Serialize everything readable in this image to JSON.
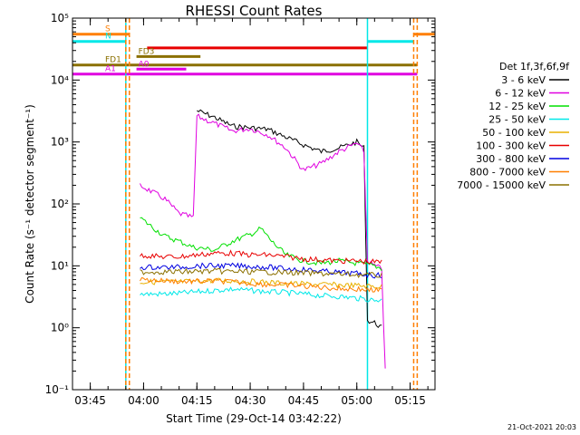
{
  "chart_data": {
    "type": "line",
    "title": "RHESSI Count Rates",
    "xlabel": "Start Time (29-Oct-14 03:42:22)",
    "ylabel": "Count Rate (s⁻¹ detector segment⁻¹)",
    "yscale": "log",
    "ylim": [
      0.1,
      100000
    ],
    "xlim": [
      "03:40",
      "05:22"
    ],
    "x_ticks": [
      "03:45",
      "04:00",
      "04:15",
      "04:30",
      "04:45",
      "05:00",
      "05:15"
    ],
    "y_ticks": [
      "10⁻¹",
      "10⁰",
      "10¹",
      "10²",
      "10³",
      "10⁴",
      "10⁵"
    ],
    "grid": false,
    "legend": {
      "position": "right",
      "title": "Det 1f,3f,6f,9f",
      "entries": [
        {
          "label": "3 - 6 keV",
          "color": "#000000"
        },
        {
          "label": "6 - 12 keV",
          "color": "#e000e0"
        },
        {
          "label": "12 - 25 keV",
          "color": "#00e000"
        },
        {
          "label": "25 - 50 keV",
          "color": "#00e8e8"
        },
        {
          "label": "50 - 100 keV",
          "color": "#e8b000"
        },
        {
          "label": "100 - 300 keV",
          "color": "#e80000"
        },
        {
          "label": "300 - 800 keV",
          "color": "#0000e0"
        },
        {
          "label": "800 - 7000 keV",
          "color": "#ff7f00"
        },
        {
          "label": "7000 - 15000 keV",
          "color": "#8b7000"
        }
      ]
    },
    "series": [
      {
        "name": "3 - 6 keV",
        "color": "#000000",
        "points": [
          [
            "04:15",
            3200
          ],
          [
            "04:20",
            2500
          ],
          [
            "04:25",
            1800
          ],
          [
            "04:30",
            1700
          ],
          [
            "04:35",
            1600
          ],
          [
            "04:40",
            1200
          ],
          [
            "04:45",
            900
          ],
          [
            "04:50",
            700
          ],
          [
            "04:55",
            800
          ],
          [
            "05:00",
            1000
          ],
          [
            "05:02",
            800
          ],
          [
            "05:03",
            1.3
          ],
          [
            "05:05",
            1.2
          ],
          [
            "05:07",
            1.0
          ]
        ]
      },
      {
        "name": "6 - 12 keV",
        "color": "#e000e0",
        "points": [
          [
            "03:59",
            200
          ],
          [
            "04:03",
            150
          ],
          [
            "04:06",
            120
          ],
          [
            "04:10",
            70
          ],
          [
            "04:14",
            60
          ],
          [
            "04:15",
            2600
          ],
          [
            "04:20",
            2000
          ],
          [
            "04:25",
            1500
          ],
          [
            "04:30",
            1650
          ],
          [
            "04:35",
            1300
          ],
          [
            "04:40",
            800
          ],
          [
            "04:45",
            350
          ],
          [
            "04:50",
            450
          ],
          [
            "04:55",
            700
          ],
          [
            "05:00",
            950
          ],
          [
            "05:02",
            700
          ],
          [
            "05:03",
            12
          ],
          [
            "05:05",
            10
          ],
          [
            "05:07",
            9
          ],
          [
            "05:08",
            0.2
          ]
        ]
      },
      {
        "name": "12 - 25 keV",
        "color": "#00e000",
        "points": [
          [
            "03:59",
            60
          ],
          [
            "04:03",
            40
          ],
          [
            "04:06",
            30
          ],
          [
            "04:10",
            25
          ],
          [
            "04:14",
            20
          ],
          [
            "04:20",
            18
          ],
          [
            "04:25",
            25
          ],
          [
            "04:30",
            32
          ],
          [
            "04:33",
            40
          ],
          [
            "04:36",
            25
          ],
          [
            "04:40",
            15
          ],
          [
            "04:45",
            12
          ],
          [
            "04:50",
            11
          ],
          [
            "04:55",
            12
          ],
          [
            "05:00",
            11
          ],
          [
            "05:05",
            10
          ],
          [
            "05:07",
            9
          ]
        ]
      },
      {
        "name": "25 - 50 keV",
        "color": "#00e8e8",
        "points": [
          [
            "03:59",
            3.5
          ],
          [
            "04:05",
            3.5
          ],
          [
            "04:10",
            3.6
          ],
          [
            "04:15",
            3.8
          ],
          [
            "04:20",
            4.0
          ],
          [
            "04:25",
            4.2
          ],
          [
            "04:30",
            4.0
          ],
          [
            "04:35",
            3.8
          ],
          [
            "04:40",
            3.7
          ],
          [
            "04:45",
            3.5
          ],
          [
            "04:50",
            3.3
          ],
          [
            "04:55",
            3.2
          ],
          [
            "05:00",
            3.0
          ],
          [
            "05:05",
            2.8
          ],
          [
            "05:07",
            2.8
          ]
        ]
      },
      {
        "name": "50 - 100 keV",
        "color": "#e8b000",
        "points": [
          [
            "03:59",
            5.5
          ],
          [
            "04:10",
            5.5
          ],
          [
            "04:20",
            5.8
          ],
          [
            "04:30",
            5.6
          ],
          [
            "04:40",
            5.2
          ],
          [
            "04:50",
            5.0
          ],
          [
            "05:00",
            4.8
          ],
          [
            "05:07",
            4.6
          ]
        ]
      },
      {
        "name": "100 - 300 keV",
        "color": "#e80000",
        "points": [
          [
            "03:59",
            15
          ],
          [
            "04:05",
            14
          ],
          [
            "04:10",
            14
          ],
          [
            "04:15",
            15
          ],
          [
            "04:20",
            16
          ],
          [
            "04:25",
            16
          ],
          [
            "04:30",
            15
          ],
          [
            "04:35",
            15
          ],
          [
            "04:40",
            14
          ],
          [
            "04:45",
            13
          ],
          [
            "04:50",
            12.5
          ],
          [
            "04:55",
            12
          ],
          [
            "05:00",
            12
          ],
          [
            "05:05",
            11.5
          ],
          [
            "05:07",
            11.5
          ]
        ]
      },
      {
        "name": "300 - 800 keV",
        "color": "#0000e0",
        "points": [
          [
            "03:59",
            9.5
          ],
          [
            "04:05",
            9.5
          ],
          [
            "04:10",
            9.5
          ],
          [
            "04:15",
            10
          ],
          [
            "04:20",
            10
          ],
          [
            "04:25",
            10
          ],
          [
            "04:30",
            9.8
          ],
          [
            "04:35",
            9.5
          ],
          [
            "04:40",
            9
          ],
          [
            "04:45",
            8.7
          ],
          [
            "04:50",
            8.2
          ],
          [
            "04:55",
            7.8
          ],
          [
            "05:00",
            7.5
          ],
          [
            "05:05",
            7
          ],
          [
            "05:07",
            7
          ]
        ]
      },
      {
        "name": "800 - 7000 keV",
        "color": "#ff7f00",
        "points": [
          [
            "03:59",
            6
          ],
          [
            "04:05",
            5.8
          ],
          [
            "04:10",
            5.6
          ],
          [
            "04:15",
            5.6
          ],
          [
            "04:20",
            5.7
          ],
          [
            "04:25",
            5.5
          ],
          [
            "04:30",
            5.2
          ],
          [
            "04:35",
            5.0
          ],
          [
            "04:40",
            4.9
          ],
          [
            "04:45",
            4.7
          ],
          [
            "04:50",
            4.5
          ],
          [
            "04:55",
            4.3
          ],
          [
            "05:00",
            4.2
          ],
          [
            "05:05",
            4.0
          ],
          [
            "05:07",
            4.0
          ]
        ]
      },
      {
        "name": "7000 - 15000 keV",
        "color": "#8b7000",
        "points": [
          [
            "03:59",
            8
          ],
          [
            "04:10",
            8
          ],
          [
            "04:20",
            8.2
          ],
          [
            "04:30",
            8
          ],
          [
            "04:40",
            7.8
          ],
          [
            "04:50",
            7.5
          ],
          [
            "05:00",
            7.2
          ],
          [
            "05:07",
            7
          ]
        ]
      }
    ],
    "flags": [
      {
        "label": "S",
        "color": "#ff7f00",
        "level": 55000,
        "segments": [
          [
            "03:40",
            "03:56"
          ],
          [
            "05:16",
            "05:22"
          ]
        ]
      },
      {
        "label": "N",
        "color": "#00e8e8",
        "level": 42000,
        "segments": [
          [
            "03:40",
            "03:55"
          ],
          [
            "05:03",
            "05:16"
          ]
        ]
      },
      {
        "label": "",
        "color": "#e80000",
        "level": 33000,
        "segments": [
          [
            "04:01",
            "05:03"
          ]
        ]
      },
      {
        "label": "FD1",
        "color": "#8b7000",
        "level": 17500,
        "segments": [
          [
            "03:40",
            "05:17"
          ]
        ]
      },
      {
        "label": "FD3",
        "color": "#8b7000",
        "level": 24000,
        "segments": [
          [
            "03:58",
            "04:16"
          ]
        ]
      },
      {
        "label": "A0",
        "color": "#e000e0",
        "level": 15000,
        "segments": [
          [
            "03:58",
            "04:12"
          ]
        ]
      },
      {
        "label": "A1",
        "color": "#e000e0",
        "level": 12500,
        "segments": [
          [
            "03:40",
            "05:17"
          ]
        ]
      }
    ],
    "vlines": [
      {
        "time": "03:55",
        "color": "#00e8e8"
      },
      {
        "time": "03:55",
        "color": "#ff7f00",
        "dashed": true
      },
      {
        "time": "03:56",
        "color": "#ff7f00",
        "dashed": true
      },
      {
        "time": "05:03",
        "color": "#00e8e8"
      },
      {
        "time": "05:16",
        "color": "#ff7f00",
        "dashed": true
      },
      {
        "time": "05:17",
        "color": "#ff7f00",
        "dashed": true
      }
    ],
    "footer": "21-Oct-2021 20:03"
  }
}
